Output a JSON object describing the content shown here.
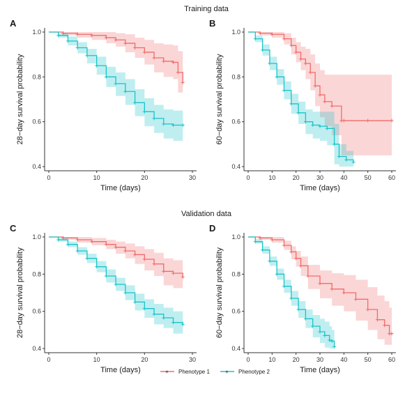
{
  "sections": [
    {
      "title": "Training data"
    },
    {
      "title": "Validation data"
    }
  ],
  "colors": {
    "phenotype1": "#f06b6b",
    "phenotype2": "#19c3c8"
  },
  "legend": {
    "placement": "bottom-center",
    "items": [
      "Phenotype 1",
      "Phenotype 2"
    ]
  },
  "chart_data": [
    {
      "panel": "A",
      "type": "line",
      "section": "Training data",
      "xlabel": "Time (days)",
      "ylabel": "28−day survival probability",
      "xlim": [
        0,
        30
      ],
      "ylim": [
        0.4,
        1.0
      ],
      "xticks": [
        0,
        10,
        20,
        30
      ],
      "yticks": [
        0.4,
        0.6,
        0.8,
        1.0
      ],
      "series": [
        {
          "name": "Phenotype 1",
          "x": [
            0,
            3,
            6,
            9,
            12,
            14,
            16,
            18,
            20,
            22,
            24,
            26,
            27,
            28
          ],
          "y": [
            1.0,
            0.995,
            0.99,
            0.985,
            0.975,
            0.965,
            0.95,
            0.93,
            0.91,
            0.885,
            0.87,
            0.865,
            0.82,
            0.775
          ],
          "lower": [
            1.0,
            0.985,
            0.975,
            0.965,
            0.95,
            0.935,
            0.91,
            0.885,
            0.855,
            0.82,
            0.8,
            0.79,
            0.73,
            0.68
          ],
          "upper": [
            1.0,
            1.0,
            1.0,
            1.0,
            1.0,
            0.995,
            0.99,
            0.975,
            0.965,
            0.95,
            0.945,
            0.94,
            0.915,
            0.87
          ]
        },
        {
          "name": "Phenotype 2",
          "x": [
            0,
            2,
            4,
            6,
            8,
            10,
            12,
            14,
            16,
            18,
            20,
            22,
            24,
            26,
            28
          ],
          "y": [
            1.0,
            0.985,
            0.96,
            0.93,
            0.895,
            0.85,
            0.8,
            0.77,
            0.735,
            0.685,
            0.645,
            0.615,
            0.59,
            0.585,
            0.585
          ],
          "lower": [
            1.0,
            0.975,
            0.94,
            0.905,
            0.86,
            0.81,
            0.755,
            0.715,
            0.675,
            0.625,
            0.58,
            0.55,
            0.525,
            0.515,
            0.515
          ],
          "upper": [
            1.0,
            0.995,
            0.98,
            0.955,
            0.925,
            0.89,
            0.845,
            0.82,
            0.79,
            0.745,
            0.705,
            0.675,
            0.655,
            0.65,
            0.65
          ]
        }
      ]
    },
    {
      "panel": "B",
      "type": "line",
      "section": "Training data",
      "xlabel": "Time (days)",
      "ylabel": "60−day survival probability",
      "xlim": [
        0,
        60
      ],
      "ylim": [
        0.4,
        1.0
      ],
      "xticks": [
        0,
        10,
        20,
        30,
        40,
        50,
        60
      ],
      "yticks": [
        0.4,
        0.6,
        0.8,
        1.0
      ],
      "series": [
        {
          "name": "Phenotype 1",
          "x": [
            0,
            5,
            10,
            15,
            18,
            20,
            22,
            24,
            26,
            28,
            30,
            32,
            35,
            39,
            40,
            50,
            60
          ],
          "y": [
            1.0,
            0.995,
            0.99,
            0.97,
            0.94,
            0.91,
            0.88,
            0.86,
            0.82,
            0.76,
            0.72,
            0.69,
            0.67,
            0.605,
            0.605,
            0.605,
            0.605
          ],
          "lower": [
            1.0,
            0.985,
            0.975,
            0.945,
            0.9,
            0.865,
            0.83,
            0.79,
            0.74,
            0.67,
            0.62,
            0.58,
            0.54,
            0.45,
            0.45,
            0.45,
            0.45
          ],
          "upper": [
            1.0,
            1.0,
            1.0,
            0.995,
            0.975,
            0.955,
            0.935,
            0.925,
            0.9,
            0.86,
            0.83,
            0.81,
            0.81,
            0.81,
            0.81,
            0.81,
            0.81
          ]
        },
        {
          "name": "Phenotype 2",
          "x": [
            0,
            3,
            6,
            9,
            12,
            15,
            18,
            21,
            24,
            27,
            30,
            33,
            36,
            38,
            41,
            44
          ],
          "y": [
            1.0,
            0.97,
            0.92,
            0.86,
            0.8,
            0.74,
            0.68,
            0.64,
            0.6,
            0.585,
            0.58,
            0.57,
            0.5,
            0.445,
            0.43,
            0.42
          ],
          "lower": [
            1.0,
            0.955,
            0.895,
            0.83,
            0.765,
            0.7,
            0.635,
            0.59,
            0.545,
            0.525,
            0.515,
            0.495,
            0.41,
            0.4,
            0.4,
            0.4
          ],
          "upper": [
            1.0,
            0.985,
            0.945,
            0.89,
            0.835,
            0.78,
            0.725,
            0.69,
            0.655,
            0.645,
            0.645,
            0.645,
            0.59,
            0.5,
            0.47,
            0.45
          ]
        }
      ]
    },
    {
      "panel": "C",
      "type": "line",
      "section": "Validation data",
      "xlabel": "Time (days)",
      "ylabel": "28−day survival probability",
      "xlim": [
        0,
        30
      ],
      "ylim": [
        0.4,
        1.0
      ],
      "xticks": [
        0,
        10,
        20,
        30
      ],
      "yticks": [
        0.4,
        0.6,
        0.8,
        1.0
      ],
      "series": [
        {
          "name": "Phenotype 1",
          "x": [
            0,
            3,
            6,
            9,
            12,
            14,
            16,
            18,
            20,
            22,
            24,
            26,
            28
          ],
          "y": [
            1.0,
            0.995,
            0.985,
            0.975,
            0.96,
            0.945,
            0.925,
            0.905,
            0.88,
            0.855,
            0.815,
            0.805,
            0.785
          ],
          "lower": [
            1.0,
            0.985,
            0.97,
            0.955,
            0.935,
            0.91,
            0.885,
            0.855,
            0.82,
            0.79,
            0.74,
            0.725,
            0.7
          ],
          "upper": [
            1.0,
            1.0,
            1.0,
            0.995,
            0.985,
            0.975,
            0.965,
            0.95,
            0.935,
            0.915,
            0.885,
            0.875,
            0.86
          ]
        },
        {
          "name": "Phenotype 2",
          "x": [
            0,
            2,
            4,
            6,
            8,
            10,
            12,
            14,
            16,
            18,
            20,
            22,
            24,
            26,
            28
          ],
          "y": [
            1.0,
            0.985,
            0.96,
            0.925,
            0.885,
            0.84,
            0.79,
            0.745,
            0.7,
            0.65,
            0.615,
            0.585,
            0.565,
            0.54,
            0.53
          ],
          "lower": [
            1.0,
            0.975,
            0.945,
            0.905,
            0.86,
            0.81,
            0.755,
            0.71,
            0.66,
            0.605,
            0.565,
            0.53,
            0.51,
            0.48,
            0.47
          ],
          "upper": [
            1.0,
            0.995,
            0.975,
            0.945,
            0.91,
            0.87,
            0.825,
            0.78,
            0.74,
            0.695,
            0.665,
            0.64,
            0.62,
            0.6,
            0.59
          ]
        }
      ]
    },
    {
      "panel": "D",
      "type": "line",
      "section": "Validation data",
      "xlabel": "Time (days)",
      "ylabel": "60−day survival probability",
      "xlim": [
        0,
        60
      ],
      "ylim": [
        0.4,
        1.0
      ],
      "xticks": [
        0,
        10,
        20,
        30,
        40,
        50,
        60
      ],
      "yticks": [
        0.4,
        0.6,
        0.8,
        1.0
      ],
      "series": [
        {
          "name": "Phenotype 1",
          "x": [
            0,
            5,
            10,
            15,
            18,
            20,
            22,
            25,
            30,
            35,
            40,
            45,
            50,
            54,
            57,
            59,
            60
          ],
          "y": [
            1.0,
            0.995,
            0.985,
            0.955,
            0.92,
            0.885,
            0.845,
            0.79,
            0.75,
            0.72,
            0.7,
            0.665,
            0.61,
            0.555,
            0.525,
            0.48,
            0.48
          ],
          "lower": [
            1.0,
            0.985,
            0.97,
            0.93,
            0.88,
            0.84,
            0.79,
            0.72,
            0.67,
            0.63,
            0.6,
            0.55,
            0.5,
            0.45,
            0.42,
            0.42,
            0.42
          ],
          "upper": [
            1.0,
            1.0,
            1.0,
            0.98,
            0.95,
            0.925,
            0.895,
            0.85,
            0.82,
            0.805,
            0.795,
            0.77,
            0.73,
            0.685,
            0.655,
            0.62,
            0.62
          ]
        },
        {
          "name": "Phenotype 2",
          "x": [
            0,
            3,
            6,
            9,
            12,
            15,
            18,
            21,
            24,
            27,
            30,
            32,
            34,
            35,
            36
          ],
          "y": [
            1.0,
            0.975,
            0.93,
            0.87,
            0.8,
            0.735,
            0.67,
            0.61,
            0.56,
            0.52,
            0.49,
            0.47,
            0.445,
            0.44,
            0.41
          ],
          "lower": [
            1.0,
            0.965,
            0.91,
            0.845,
            0.77,
            0.7,
            0.63,
            0.565,
            0.51,
            0.46,
            0.43,
            0.405,
            0.4,
            0.4,
            0.4
          ],
          "upper": [
            1.0,
            0.99,
            0.95,
            0.895,
            0.83,
            0.77,
            0.71,
            0.655,
            0.61,
            0.58,
            0.56,
            0.545,
            0.52,
            0.5,
            0.46
          ]
        }
      ]
    }
  ]
}
